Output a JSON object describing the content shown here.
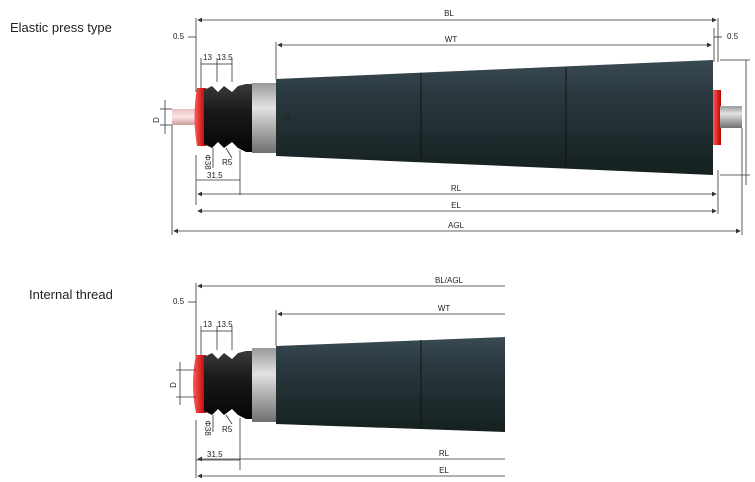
{
  "sections": [
    {
      "title": "Elastic press type",
      "dims": {
        "total_length": "BL",
        "offset_left": "0.5",
        "offset_right": "0.5",
        "tube_length": "WT",
        "width_a": "13",
        "width_b": "13.5",
        "shaft_dia": "D",
        "body_dia": "D",
        "groove_dia": "Φ38",
        "radius": "R5",
        "shoulder": "31.5",
        "rl": "RL",
        "el": "EL",
        "agl": "AGL"
      }
    },
    {
      "title": "Internal thread",
      "dims": {
        "total_length": "BL/AGL",
        "offset_left": "0.5",
        "tube_length": "WT",
        "width_a": "13",
        "width_b": "13.5",
        "shaft_dia": "D",
        "body_dia": "D",
        "groove_dia": "Φ38",
        "radius": "R5",
        "shoulder": "31.5",
        "rl": "RL",
        "el": "EL"
      }
    }
  ]
}
